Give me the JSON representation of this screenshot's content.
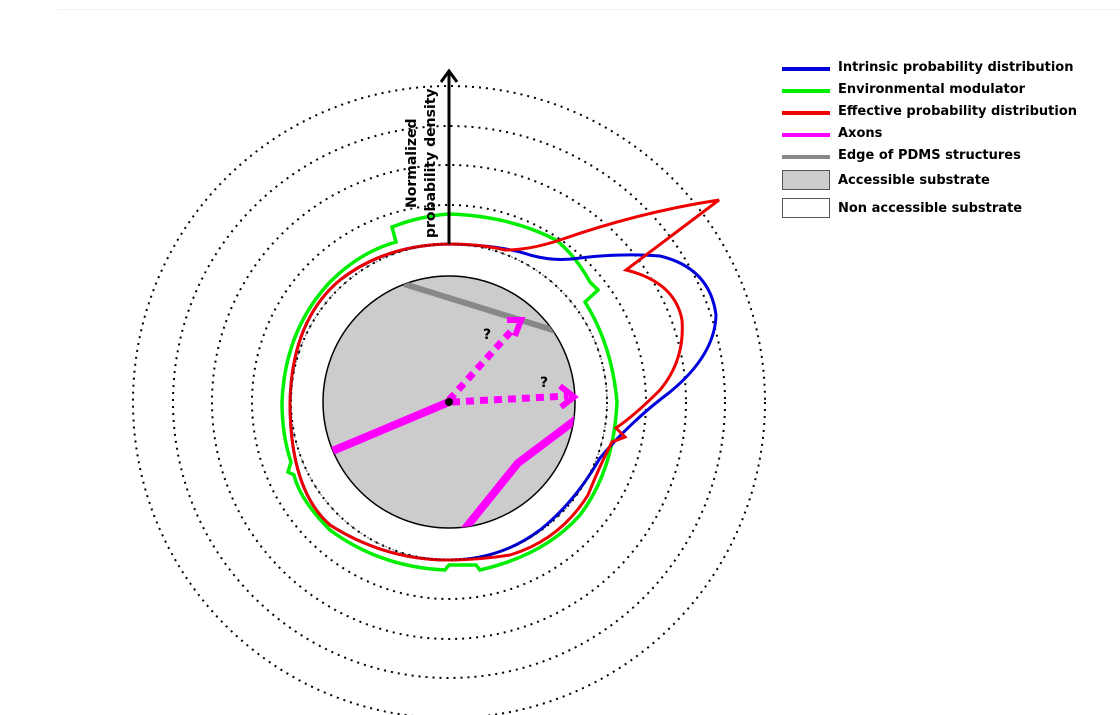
{
  "diagram": {
    "axis_label_line1": "Normalized",
    "axis_label_line2": "probability density",
    "question_mark_1": "?",
    "question_mark_2": "?"
  },
  "legend": {
    "items": [
      {
        "label": "Intrinsic  probability distribution",
        "color": "#0000dd",
        "kind": "line"
      },
      {
        "label": "Environmental modulator",
        "color": "#00ee00",
        "kind": "line"
      },
      {
        "label": "Effective probability distribution",
        "color": "#ee0000",
        "kind": "line"
      },
      {
        "label": "Axons",
        "color": "#ff00ff",
        "kind": "line"
      },
      {
        "label": "Edge of PDMS structures",
        "color": "#888888",
        "kind": "line"
      },
      {
        "label": "Accessible substrate",
        "color": "#cccccc",
        "kind": "box"
      },
      {
        "label": "Non accessible substrate",
        "color": "#ffffff",
        "kind": "box"
      }
    ]
  }
}
